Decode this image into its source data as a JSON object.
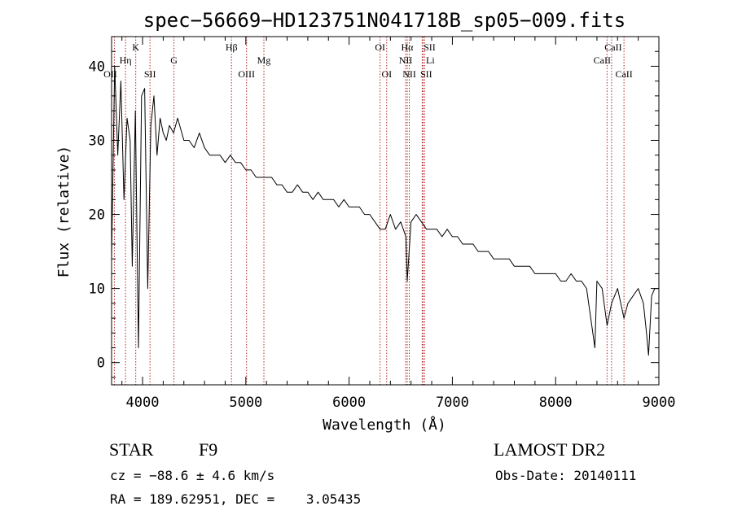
{
  "chart_data": {
    "type": "line",
    "title": "spec−56669−HD123751N041718B_sp05−009.fits",
    "xlabel": "Wavelength (Å)",
    "ylabel": "Flux (relative)",
    "xlim": [
      3700,
      9000
    ],
    "ylim": [
      -3,
      44
    ],
    "xticks": [
      4000,
      5000,
      6000,
      7000,
      8000,
      9000
    ],
    "yticks": [
      0,
      10,
      20,
      30,
      40
    ],
    "series": [
      {
        "x": [
          3700,
          3730,
          3760,
          3790,
          3820,
          3850,
          3880,
          3900,
          3930,
          3960,
          3990,
          4020,
          4050,
          4080,
          4110,
          4140,
          4170,
          4200,
          4230,
          4260,
          4300,
          4340,
          4400,
          4450,
          4500,
          4550,
          4600,
          4650,
          4700,
          4750,
          4800,
          4850,
          4900,
          4950,
          5000,
          5050,
          5100,
          5150,
          5200,
          5250,
          5300,
          5350,
          5400,
          5450,
          5500,
          5550,
          5600,
          5650,
          5700,
          5750,
          5800,
          5850,
          5900,
          5950,
          6000,
          6050,
          6100,
          6150,
          6200,
          6250,
          6300,
          6350,
          6400,
          6450,
          6500,
          6550,
          6563,
          6600,
          6650,
          6700,
          6750,
          6800,
          6850,
          6900,
          6950,
          7000,
          7050,
          7100,
          7150,
          7200,
          7250,
          7300,
          7350,
          7400,
          7450,
          7500,
          7550,
          7600,
          7650,
          7700,
          7750,
          7800,
          7850,
          7900,
          7950,
          8000,
          8050,
          8100,
          8150,
          8200,
          8250,
          8300,
          8350,
          8380,
          8400,
          8450,
          8498,
          8542,
          8600,
          8662,
          8700,
          8750,
          8800,
          8850,
          8880,
          8900,
          8930,
          8960,
          9000
        ],
        "y": [
          14,
          40,
          28,
          38,
          22,
          33,
          30,
          13,
          34,
          2,
          36,
          37,
          10,
          32,
          36,
          28,
          33,
          31,
          30,
          32,
          31,
          33,
          30,
          30,
          29,
          31,
          29,
          28,
          28,
          28,
          27,
          28,
          27,
          27,
          26,
          26,
          25,
          25,
          25,
          25,
          24,
          24,
          23,
          23,
          24,
          23,
          23,
          22,
          23,
          22,
          22,
          22,
          21,
          22,
          21,
          21,
          21,
          20,
          20,
          19,
          18,
          18,
          20,
          18,
          19,
          17,
          11,
          19,
          20,
          19,
          18,
          18,
          18,
          17,
          18,
          17,
          17,
          16,
          16,
          16,
          15,
          15,
          15,
          14,
          14,
          14,
          14,
          13,
          13,
          13,
          13,
          12,
          12,
          12,
          12,
          12,
          11,
          11,
          12,
          11,
          11,
          10,
          5,
          2,
          11,
          10,
          5,
          8,
          10,
          6,
          8,
          9,
          10,
          8,
          4,
          1,
          9,
          10,
          10
        ]
      }
    ],
    "spectral_lines": [
      {
        "label": "OII",
        "wavelength": 3727,
        "row": 3,
        "offset": -5
      },
      {
        "label": "Hη",
        "wavelength": 3835,
        "row": 2,
        "offset": 0
      },
      {
        "label": "K",
        "wavelength": 3934,
        "row": 1,
        "offset": 0
      },
      {
        "label": "SII",
        "wavelength": 4072,
        "row": 3,
        "offset": 0
      },
      {
        "label": "G",
        "wavelength": 4304,
        "row": 2,
        "offset": 0
      },
      {
        "label": "Hβ",
        "wavelength": 4861,
        "row": 1,
        "offset": 0
      },
      {
        "label": "OIII",
        "wavelength": 5007,
        "row": 3,
        "offset": 0
      },
      {
        "label": "Mg",
        "wavelength": 5175,
        "row": 2,
        "offset": 0
      },
      {
        "label": "OI",
        "wavelength": 6300,
        "row": 1,
        "offset": 0
      },
      {
        "label": "OI",
        "wavelength": 6364,
        "row": 3,
        "offset": 0
      },
      {
        "label": "NII",
        "wavelength": 6548,
        "row": 2,
        "offset": 0
      },
      {
        "label": "Hα",
        "wavelength": 6563,
        "row": 1,
        "offset": 0
      },
      {
        "label": "NII",
        "wavelength": 6583,
        "row": 3,
        "offset": 0
      },
      {
        "label": "SII",
        "wavelength": 6716,
        "row": 1,
        "offset": 8
      },
      {
        "label": "Li",
        "wavelength": 6708,
        "row": 2,
        "offset": 10
      },
      {
        "label": "SII",
        "wavelength": 6731,
        "row": 3,
        "offset": 2
      },
      {
        "label": "CaII",
        "wavelength": 8498,
        "row": 2,
        "offset": -6
      },
      {
        "label": "CaII",
        "wavelength": 8542,
        "row": 1,
        "offset": 2
      },
      {
        "label": "CaII",
        "wavelength": 8662,
        "row": 3,
        "offset": 0
      }
    ],
    "line_color": "#000000",
    "marker_color": "#b22222"
  },
  "footer": {
    "object_class": "STAR",
    "subclass": "F9",
    "survey": "LAMOST DR2",
    "cz": "cz = −88.6 ± 4.6 km/s",
    "obs_date": "Obs-Date: 20140111",
    "coords": "RA = 189.62951, DEC =    3.05435"
  }
}
